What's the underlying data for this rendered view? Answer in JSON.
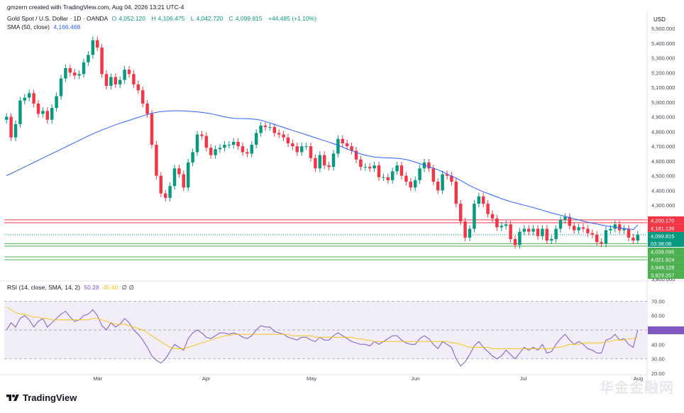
{
  "header": {
    "creator": "gmzern created with TradingView.com, Aug 04, 2026 13:21 UTC-4",
    "symbol": "Gold Spot / U.S. Dollar · 1D · OANDA",
    "o_label": "O",
    "o_value": "4,052.120",
    "h_label": "H",
    "h_value": "4,106.475",
    "l_label": "L",
    "l_value": "4,042.720",
    "c_label": "C",
    "c_value": "4,099.815",
    "change": "+44.485 (+1.10%)",
    "sma_label": "SMA (50, close)",
    "sma_value": "4,166.468",
    "rsi_label": "RSI (14, close, SMA, 14, 2)",
    "rsi_value": "50.28",
    "rsi_sma_value": "45.40",
    "rsi_extra": "∅ ∅",
    "currency": "USD"
  },
  "footer": {
    "brand": "TradingView"
  },
  "watermark": "华金金融网",
  "colors": {
    "up": "#089981",
    "down": "#f23645",
    "sma": "#2962ff",
    "rsi": "#7e57c2",
    "rsi_ma": "#f5c518",
    "rsi_band": "#ede7f6",
    "price_label": "#089981",
    "resistance": "#f23645",
    "support": "#4caf50"
  },
  "chart_data": {
    "type": "candlestick",
    "price_axis": {
      "ylim": [
        3800,
        5500
      ],
      "ticks": [
        "5,500.000",
        "5,400.000",
        "5,300.000",
        "5,200.000",
        "5,100.000",
        "5,000.000",
        "4,900.000",
        "4,800.000",
        "4,700.000",
        "4,600.000",
        "4,500.000",
        "4,400.000",
        "4,300.000",
        "3,800.000"
      ],
      "tick_values": [
        5500,
        5400,
        5300,
        5200,
        5100,
        5000,
        4900,
        4800,
        4700,
        4600,
        4500,
        4400,
        4300,
        3800
      ]
    },
    "time_axis": {
      "labels": [
        "Mar",
        "Apr",
        "May",
        "Jun",
        "Jul",
        "Aug"
      ],
      "label_index": [
        20,
        44,
        67,
        90,
        114,
        139
      ]
    },
    "current_price": {
      "value": 4099.815,
      "label": "4,099.815",
      "countdown": "03:38:08"
    },
    "horizontal_levels": [
      {
        "value": 4200.17,
        "label": "4,200.170",
        "kind": "resistance"
      },
      {
        "value": 4181.139,
        "label": "4,181.139",
        "kind": "resistance"
      },
      {
        "value": 4039.095,
        "label": "4,039.095",
        "kind": "support"
      },
      {
        "value": 4021.924,
        "label": "4,021.924",
        "kind": "support"
      },
      {
        "value": 3949.128,
        "label": "3,949.128",
        "kind": "support"
      },
      {
        "value": 3929.257,
        "label": "3,929.257",
        "kind": "support"
      }
    ],
    "closes": [
      4900,
      4760,
      4850,
      5010,
      5030,
      5060,
      4990,
      4920,
      4940,
      4880,
      4960,
      5040,
      5160,
      5230,
      5200,
      5180,
      5190,
      5270,
      5320,
      5420,
      5370,
      5190,
      5110,
      5170,
      5120,
      5150,
      5220,
      5190,
      5120,
      5080,
      4990,
      4920,
      4710,
      4500,
      4380,
      4350,
      4430,
      4550,
      4510,
      4420,
      4590,
      4660,
      4780,
      4770,
      4690,
      4640,
      4680,
      4690,
      4710,
      4710,
      4730,
      4700,
      4660,
      4650,
      4710,
      4790,
      4840,
      4830,
      4830,
      4790,
      4780,
      4760,
      4720,
      4700,
      4660,
      4700,
      4700,
      4620,
      4550,
      4640,
      4570,
      4560,
      4650,
      4750,
      4720,
      4700,
      4670,
      4610,
      4560,
      4560,
      4550,
      4570,
      4490,
      4490,
      4470,
      4530,
      4570,
      4500,
      4460,
      4420,
      4470,
      4550,
      4590,
      4550,
      4460,
      4400,
      4510,
      4500,
      4460,
      4310,
      4190,
      4080,
      4140,
      4310,
      4360,
      4310,
      4240,
      4210,
      4150,
      4160,
      4170,
      4070,
      4030,
      4120,
      4140,
      4120,
      4140,
      4090,
      4140,
      4060,
      4070,
      4140,
      4200,
      4220,
      4160,
      4130,
      4150,
      4140,
      4110,
      4100,
      4050,
      4040,
      4130,
      4140,
      4170,
      4130,
      4140,
      4080,
      4060,
      4100
    ],
    "sma50": {
      "start_index": 0,
      "values": [
        4500,
        4515,
        4530,
        4545,
        4560,
        4575,
        4590,
        4605,
        4620,
        4635,
        4650,
        4665,
        4680,
        4695,
        4710,
        4725,
        4740,
        4755,
        4770,
        4784,
        4798,
        4810,
        4822,
        4834,
        4846,
        4856,
        4866,
        4876,
        4886,
        4896,
        4906,
        4916,
        4924,
        4930,
        4935,
        4938,
        4940,
        4941,
        4941,
        4940,
        4938,
        4936,
        4933,
        4930,
        4926,
        4921,
        4914,
        4907,
        4900,
        4894,
        4890,
        4888,
        4888,
        4887,
        4885,
        4882,
        4877,
        4868,
        4858,
        4848,
        4838,
        4828,
        4818,
        4808,
        4798,
        4788,
        4778,
        4768,
        4758,
        4748,
        4738,
        4728,
        4718,
        4706,
        4694,
        4682,
        4670,
        4658,
        4648,
        4640,
        4633,
        4627,
        4624,
        4622,
        4621,
        4620,
        4618,
        4615,
        4610,
        4602,
        4592,
        4582,
        4572,
        4562,
        4552,
        4540,
        4527,
        4512,
        4498,
        4484,
        4468,
        4451,
        4434,
        4418,
        4404,
        4391,
        4380,
        4368,
        4356,
        4344,
        4334,
        4324,
        4316,
        4308,
        4300,
        4292,
        4284,
        4275,
        4266,
        4257,
        4248,
        4240,
        4232,
        4224,
        4216,
        4208,
        4200,
        4192,
        4185,
        4178,
        4172,
        4166,
        4160,
        4155,
        4150,
        4146,
        4142,
        4138,
        4134,
        4166
      ]
    },
    "rsi": {
      "ylim": [
        20,
        80
      ],
      "ticks": [
        "70.00",
        "60.00",
        "50.00",
        "40.00",
        "30.00",
        "20.00"
      ],
      "tick_values": [
        70,
        60,
        50,
        40,
        30,
        20
      ],
      "band": [
        30,
        70
      ],
      "values": [
        50,
        55,
        52,
        58,
        60,
        57,
        52,
        56,
        58,
        52,
        55,
        58,
        61,
        63,
        59,
        56,
        57,
        60,
        61,
        64,
        60,
        53,
        50,
        55,
        52,
        54,
        58,
        55,
        50,
        47,
        43,
        38,
        32,
        29,
        27,
        30,
        35,
        40,
        38,
        36,
        44,
        48,
        50,
        48,
        45,
        44,
        46,
        48,
        48,
        47,
        48,
        47,
        45,
        44,
        46,
        50,
        53,
        52,
        52,
        49,
        48,
        47,
        45,
        44,
        43,
        45,
        45,
        43,
        42,
        45,
        43,
        43,
        46,
        48,
        46,
        44,
        42,
        41,
        40,
        40,
        39,
        42,
        40,
        42,
        44,
        46,
        46,
        43,
        41,
        40,
        40,
        44,
        46,
        44,
        40,
        37,
        42,
        40,
        38,
        30,
        25,
        28,
        33,
        39,
        42,
        38,
        35,
        32,
        30,
        32,
        36,
        33,
        30,
        34,
        38,
        36,
        38,
        36,
        40,
        34,
        35,
        40,
        44,
        47,
        43,
        40,
        42,
        40,
        37,
        36,
        34,
        34,
        43,
        44,
        47,
        43,
        44,
        40,
        38,
        50
      ],
      "ma_values": [
        66,
        64,
        62,
        61,
        61,
        60,
        59,
        59,
        58,
        58,
        57,
        57,
        57,
        57,
        57,
        57,
        57,
        57,
        57,
        58,
        58,
        57,
        56,
        55,
        54,
        54,
        54,
        53,
        52,
        51,
        50,
        48,
        46,
        44,
        42,
        40,
        38,
        37,
        37,
        37,
        38,
        39,
        40,
        41,
        42,
        43,
        44,
        45,
        46,
        46,
        47,
        47,
        47,
        47,
        47,
        47,
        47,
        47,
        47,
        47,
        47,
        47,
        47,
        46,
        46,
        46,
        46,
        46,
        45,
        45,
        45,
        45,
        45,
        45,
        45,
        45,
        45,
        44,
        44,
        43,
        43,
        42,
        42,
        42,
        42,
        42,
        42,
        42,
        42,
        42,
        42,
        42,
        42,
        42,
        42,
        42,
        42,
        42,
        41,
        41,
        40,
        39,
        38,
        38,
        38,
        38,
        38,
        37,
        37,
        37,
        37,
        37,
        37,
        37,
        37,
        37,
        37,
        37,
        37,
        37,
        37,
        38,
        38,
        39,
        40,
        40,
        40,
        41,
        41,
        41,
        41,
        41,
        42,
        42,
        43,
        43,
        43,
        44,
        44,
        45
      ]
    }
  }
}
